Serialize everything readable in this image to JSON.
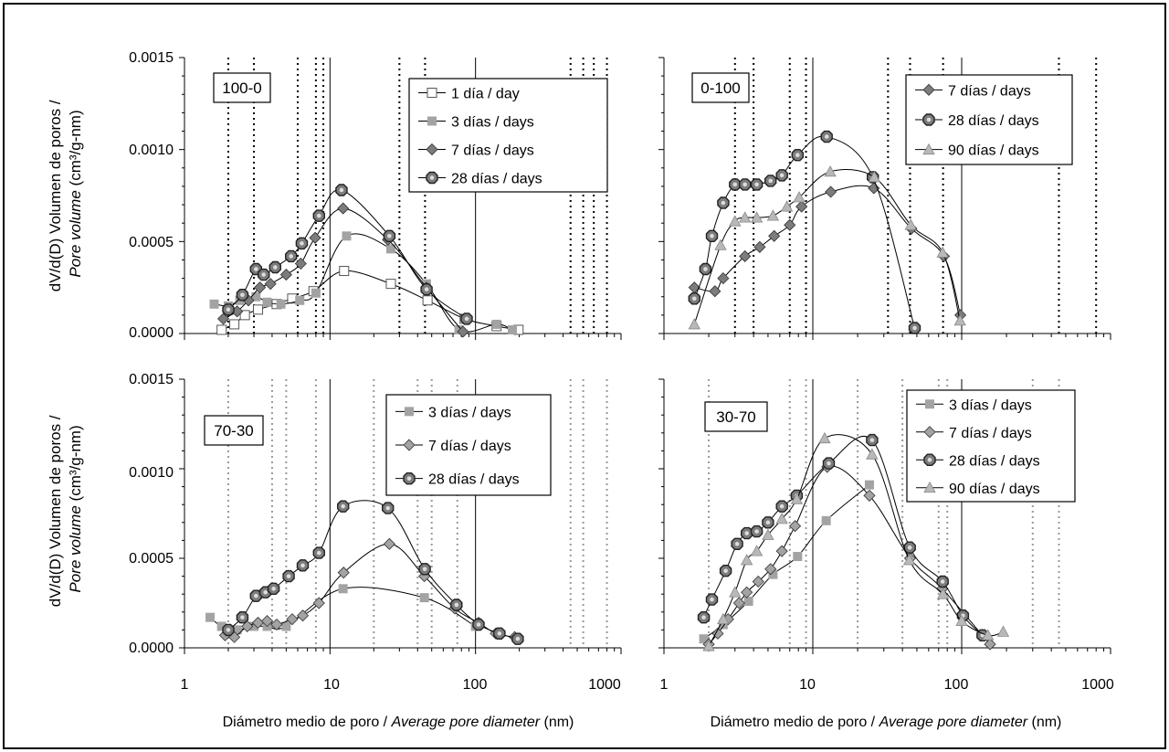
{
  "figure": {
    "y_axis_label": "dV/d(D) Volumen de poros /",
    "y_axis_label_line2": "Pore volume",
    "y_axis_label_unit": "(cm³/g-nm)",
    "x_axis_label": "Diámetro medio de poro /",
    "x_axis_label_italic": "Average pore diameter",
    "x_axis_label_unit": "(nm)"
  },
  "axes": {
    "x_ticks": [
      "1",
      "10",
      "100",
      "1000"
    ],
    "y_ticks": [
      "0.0000",
      "0.0005",
      "0.0010",
      "0.0015"
    ]
  },
  "colors": {
    "light_gray": "#a3a3a3",
    "dark_gray": "#7c7c7c",
    "mid_gray": "#b8b8b8",
    "line": "#000000"
  },
  "chart_data": [
    {
      "type": "scatter",
      "panel_label": "100-0",
      "x_scale": "log",
      "xlim": [
        1,
        1000
      ],
      "ylim": [
        0,
        0.0015
      ],
      "xlabel": "Diámetro medio de poro / Average pore diameter (nm)",
      "ylabel": "dV/d(D) Volumen de poros / Pore volume (cm³/g-nm)",
      "legend_position": "top-right",
      "series": [
        {
          "name": "1 día / day",
          "marker": "square-open",
          "color": "#555555",
          "x": [
            1.8,
            2.2,
            2.6,
            3.2,
            4.3,
            5.5,
            7.7,
            12.5,
            26.2,
            46.8,
            84.2,
            139.5,
            197.5
          ],
          "y": [
            2e-05,
            5e-05,
            0.0001,
            0.00013,
            0.00016,
            0.00019,
            0.00023,
            0.00034,
            0.00027,
            0.00018,
            8e-05,
            4e-05,
            2e-05
          ]
        },
        {
          "name": "3 días / days",
          "marker": "square-filled",
          "color": "#a3a3a3",
          "x": [
            1.6,
            2.0,
            2.4,
            3.1,
            3.7,
            4.6,
            6.2,
            8.0,
            13.0,
            26.2,
            46.0,
            77.0,
            139.5,
            179.0
          ],
          "y": [
            0.00016,
            0.00015,
            0.00018,
            0.0002,
            0.00017,
            0.00016,
            0.00018,
            0.00022,
            0.00053,
            0.00046,
            0.00027,
            2e-05,
            5e-05,
            2e-05
          ]
        },
        {
          "name": "7 días / days",
          "marker": "diamond",
          "color": "#7c7c7c",
          "x": [
            1.85,
            2.3,
            2.75,
            3.3,
            3.9,
            5.0,
            6.3,
            7.9,
            12.3,
            25.0,
            46.0,
            82.0
          ],
          "y": [
            8e-05,
            0.00012,
            0.00018,
            0.00025,
            0.00027,
            0.00032,
            0.00038,
            0.00052,
            0.00068,
            0.00051,
            0.00025,
            1e-05
          ]
        },
        {
          "name": "28 días / days",
          "marker": "octagon",
          "color": "#7c7c7c",
          "x": [
            2.0,
            2.5,
            3.1,
            3.5,
            4.2,
            5.4,
            6.4,
            8.4,
            12.0,
            25.6,
            46.1,
            87.0
          ],
          "y": [
            0.00013,
            0.00021,
            0.00035,
            0.00032,
            0.00036,
            0.00042,
            0.00049,
            0.00064,
            0.00078,
            0.00053,
            0.00024,
            8e-05
          ]
        }
      ]
    },
    {
      "type": "scatter",
      "panel_label": "0-100",
      "x_scale": "log",
      "xlim": [
        1,
        1000
      ],
      "ylim": [
        0,
        0.0015
      ],
      "legend_position": "top-right",
      "series": [
        {
          "name": "7 días / days",
          "marker": "diamond",
          "color": "#7c7c7c",
          "x": [
            1.6,
            2.2,
            2.5,
            3.5,
            4.4,
            5.5,
            7.0,
            8.4,
            13.2,
            25.7,
            46.0,
            76.0,
            98.0
          ],
          "y": [
            0.00025,
            0.00023,
            0.0003,
            0.00042,
            0.00047,
            0.00053,
            0.00059,
            0.00069,
            0.00077,
            0.00079,
            0.00057,
            0.00042,
            0.0001
          ]
        },
        {
          "name": "28 días / days",
          "marker": "octagon",
          "color": "#7c7c7c",
          "x": [
            1.6,
            1.9,
            2.1,
            2.5,
            3.0,
            3.5,
            4.2,
            5.2,
            6.2,
            7.9,
            12.4,
            25.3,
            48.3
          ],
          "y": [
            0.00019,
            0.00035,
            0.00053,
            0.00071,
            0.00081,
            0.00081,
            0.00081,
            0.00083,
            0.00086,
            0.00097,
            0.00107,
            0.00085,
            3e-05
          ]
        },
        {
          "name": "90 días / days",
          "marker": "triangle",
          "color": "#b8b8b8",
          "x": [
            1.6,
            2.4,
            3.0,
            3.5,
            4.2,
            5.4,
            6.7,
            8.1,
            13.1,
            25.9,
            45.5,
            74.5,
            97.5
          ],
          "y": [
            5e-05,
            0.00048,
            0.00061,
            0.00063,
            0.00063,
            0.00064,
            0.00069,
            0.00074,
            0.00088,
            0.00085,
            0.00059,
            0.00044,
            7e-05
          ]
        }
      ]
    },
    {
      "type": "scatter",
      "panel_label": "70-30",
      "x_scale": "log",
      "xlim": [
        1,
        1000
      ],
      "ylim": [
        0,
        0.0015
      ],
      "legend_position": "top-right",
      "series": [
        {
          "name": "3 días / days",
          "marker": "square-filled",
          "color": "#a3a3a3",
          "x": [
            1.5,
            1.8,
            2.3,
            3.0,
            3.7,
            5.0,
            12.3,
            44.5,
            100.0
          ],
          "y": [
            0.00017,
            0.00012,
            0.0001,
            0.00012,
            0.00012,
            0.00012,
            0.00033,
            0.00028,
            0.00012
          ]
        },
        {
          "name": "7 días / days",
          "marker": "diamond",
          "color": "#a3a3a3",
          "x": [
            1.9,
            2.2,
            2.7,
            3.2,
            3.7,
            4.3,
            5.5,
            6.5,
            8.4,
            12.4,
            25.6,
            44.5,
            72.0,
            105.0,
            138.0,
            186.0
          ],
          "y": [
            7e-05,
            6e-05,
            0.00012,
            0.00014,
            0.00015,
            0.00013,
            0.00016,
            0.00018,
            0.00025,
            0.00042,
            0.00058,
            0.0004,
            0.00022,
            0.00014,
            8e-05,
            6e-05
          ]
        },
        {
          "name": "28 días / days",
          "marker": "octagon",
          "color": "#7c7c7c",
          "x": [
            2.0,
            2.5,
            3.1,
            3.6,
            4.1,
            5.2,
            6.5,
            8.4,
            12.3,
            25.0,
            44.8,
            74.0,
            105.0,
            146.0,
            195.0
          ],
          "y": [
            0.0001,
            0.00017,
            0.00029,
            0.00031,
            0.00033,
            0.0004,
            0.00046,
            0.00053,
            0.00079,
            0.00078,
            0.00044,
            0.00024,
            0.00013,
            8e-05,
            5e-05
          ]
        }
      ]
    },
    {
      "type": "scatter",
      "panel_label": "30-70",
      "x_scale": "log",
      "xlim": [
        1,
        1000
      ],
      "ylim": [
        0,
        0.0015
      ],
      "legend_position": "top-right",
      "series": [
        {
          "name": "3 días / days",
          "marker": "square-filled",
          "color": "#a3a3a3",
          "x": [
            1.85,
            2.5,
            3.7,
            5.4,
            7.9,
            12.3,
            24.0
          ],
          "y": [
            5e-05,
            0.00013,
            0.00026,
            0.00041,
            0.00051,
            0.00071,
            0.00091
          ]
        },
        {
          "name": "7 días / days",
          "marker": "diamond",
          "color": "#a3a3a3",
          "x": [
            2.0,
            2.3,
            2.7,
            3.2,
            3.6,
            4.3,
            5.2,
            6.2,
            7.6,
            12.5,
            24.0,
            45.0,
            74.0,
            155.0
          ],
          "y": [
            2e-05,
            8e-05,
            0.00016,
            0.00025,
            0.00031,
            0.00037,
            0.00044,
            0.00054,
            0.00068,
            0.00101,
            0.00085,
            0.0005,
            0.00033,
            2e-05
          ]
        },
        {
          "name": "28 días / days",
          "marker": "octagon",
          "color": "#7c7c7c",
          "x": [
            1.85,
            2.1,
            2.6,
            3.1,
            3.6,
            4.2,
            5.0,
            6.2,
            7.8,
            12.8,
            25.0,
            44.8,
            74.5,
            102.0,
            138.0
          ],
          "y": [
            0.00017,
            0.00027,
            0.00043,
            0.00058,
            0.00064,
            0.00065,
            0.0007,
            0.00079,
            0.00085,
            0.00103,
            0.00116,
            0.00056,
            0.00037,
            0.00018,
            7e-05
          ]
        },
        {
          "name": "90 días / days",
          "marker": "triangle",
          "color": "#b8b8b8",
          "x": [
            2.0,
            2.5,
            3.0,
            3.6,
            4.2,
            5.0,
            6.2,
            7.8,
            12.0,
            25.0,
            44.5,
            75.0,
            100.0,
            150.0,
            190.0
          ],
          "y": [
            1e-05,
            0.00016,
            0.00031,
            0.00049,
            0.00054,
            0.00063,
            0.00072,
            0.00083,
            0.00117,
            0.00108,
            0.00049,
            0.0003,
            0.00015,
            7e-05,
            9e-05
          ]
        }
      ]
    }
  ]
}
